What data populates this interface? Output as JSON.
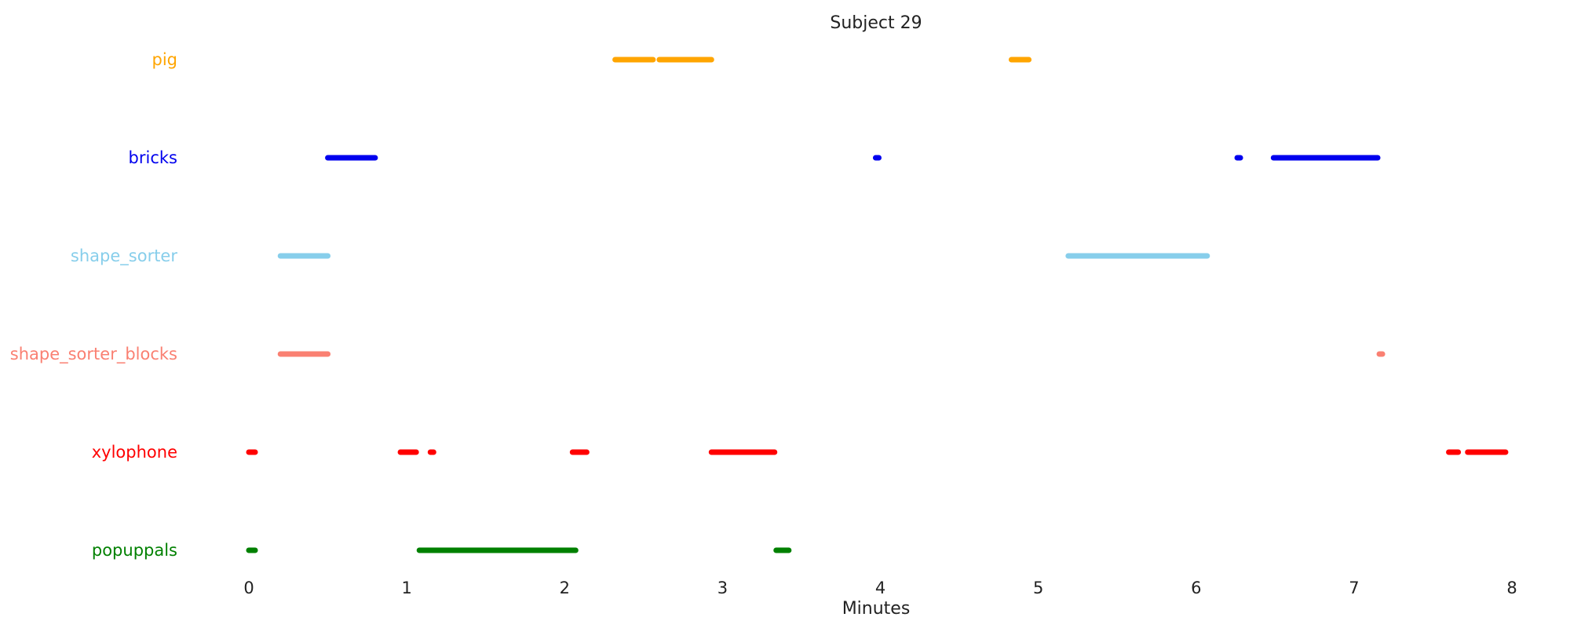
{
  "chart_data": {
    "type": "timeline",
    "title": "Subject 29",
    "xlabel": "Minutes",
    "xlim": [
      -0.3,
      8.3
    ],
    "xticks": [
      0,
      1,
      2,
      3,
      4,
      5,
      6,
      7,
      8
    ],
    "grid": false,
    "series": [
      {
        "name": "pig",
        "color": "#FFA500",
        "segments": [
          [
            2.32,
            2.56
          ],
          [
            2.6,
            2.93
          ],
          [
            4.83,
            4.94
          ]
        ]
      },
      {
        "name": "bricks",
        "color": "#0000EE",
        "segments": [
          [
            0.5,
            0.8
          ],
          [
            3.97,
            3.99
          ],
          [
            6.26,
            6.28
          ],
          [
            6.49,
            7.15
          ]
        ]
      },
      {
        "name": "shape_sorter",
        "color": "#87CEEB",
        "segments": [
          [
            0.2,
            0.5
          ],
          [
            5.19,
            6.07
          ]
        ]
      },
      {
        "name": "shape_sorter_blocks",
        "color": "#FA8072",
        "segments": [
          [
            0.2,
            0.5
          ],
          [
            7.16,
            7.18
          ]
        ]
      },
      {
        "name": "xylophone",
        "color": "#FF0000",
        "segments": [
          [
            0.0,
            0.04
          ],
          [
            0.96,
            1.06
          ],
          [
            1.15,
            1.17
          ],
          [
            2.05,
            2.14
          ],
          [
            2.93,
            3.33
          ],
          [
            7.6,
            7.66
          ],
          [
            7.72,
            7.96
          ]
        ]
      },
      {
        "name": "popuppals",
        "color": "#008000",
        "segments": [
          [
            0.0,
            0.04
          ],
          [
            1.08,
            2.07
          ],
          [
            3.34,
            3.42
          ]
        ]
      }
    ]
  }
}
